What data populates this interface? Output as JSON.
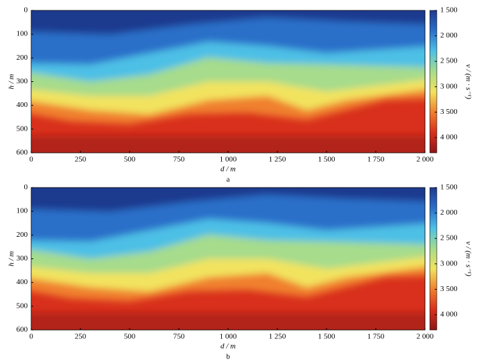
{
  "chart_data": [
    {
      "type": "heatmap",
      "caption": "a",
      "xlabel": "d / m",
      "ylabel": "h / m",
      "colorbar_label": "v / (m · s⁻¹)",
      "xlim": [
        0,
        2000
      ],
      "xticks": [
        0,
        250,
        500,
        750,
        {
          "value": 1000,
          "label": "1 000"
        },
        {
          "value": 1250,
          "label": "1 250"
        },
        {
          "value": 1500,
          "label": "1 500"
        },
        {
          "value": 1750,
          "label": "1 750"
        },
        {
          "value": 2000,
          "label": "2 000"
        }
      ],
      "ylim": [
        0,
        600
      ],
      "yticks": [
        0,
        100,
        200,
        300,
        400,
        500,
        600
      ],
      "clim": [
        1500,
        4300
      ],
      "cticks": [
        {
          "value": 1500,
          "label": "1 500"
        },
        {
          "value": 2000,
          "label": "2 000"
        },
        {
          "value": 2500,
          "label": "2 500"
        },
        {
          "value": 3000,
          "label": "3 000"
        },
        {
          "value": 3500,
          "label": "3 500"
        },
        {
          "value": 4000,
          "label": "4 000"
        }
      ],
      "colormap": [
        "#1e3a8f",
        "#2a6fc9",
        "#4ec0e6",
        "#a6dc8c",
        "#f2e35e",
        "#f0802e",
        "#d8301c",
        "#8e1616"
      ]
    },
    {
      "type": "heatmap",
      "caption": "b",
      "xlabel": "d / m",
      "ylabel": "h / m",
      "colorbar_label": "v / (m · s⁻¹)",
      "xlim": [
        0,
        2000
      ],
      "xticks": [
        0,
        250,
        500,
        750,
        {
          "value": 1000,
          "label": "1 000"
        },
        {
          "value": 1250,
          "label": "1 250"
        },
        {
          "value": 1500,
          "label": "1 500"
        },
        {
          "value": 1750,
          "label": "1 750"
        },
        {
          "value": 2000,
          "label": "2 000"
        }
      ],
      "ylim": [
        0,
        600
      ],
      "yticks": [
        0,
        100,
        200,
        300,
        400,
        500,
        600
      ],
      "clim": [
        1500,
        4300
      ],
      "cticks": [
        {
          "value": 1500,
          "label": "1 500"
        },
        {
          "value": 2000,
          "label": "2 000"
        },
        {
          "value": 2500,
          "label": "2 500"
        },
        {
          "value": 3000,
          "label": "3 000"
        },
        {
          "value": 3500,
          "label": "3 500"
        },
        {
          "value": 4000,
          "label": "4 000"
        }
      ],
      "colormap": [
        "#1e3a8f",
        "#2a6fc9",
        "#4ec0e6",
        "#a6dc8c",
        "#f2e35e",
        "#f0802e",
        "#d8301c",
        "#8e1616"
      ]
    }
  ]
}
